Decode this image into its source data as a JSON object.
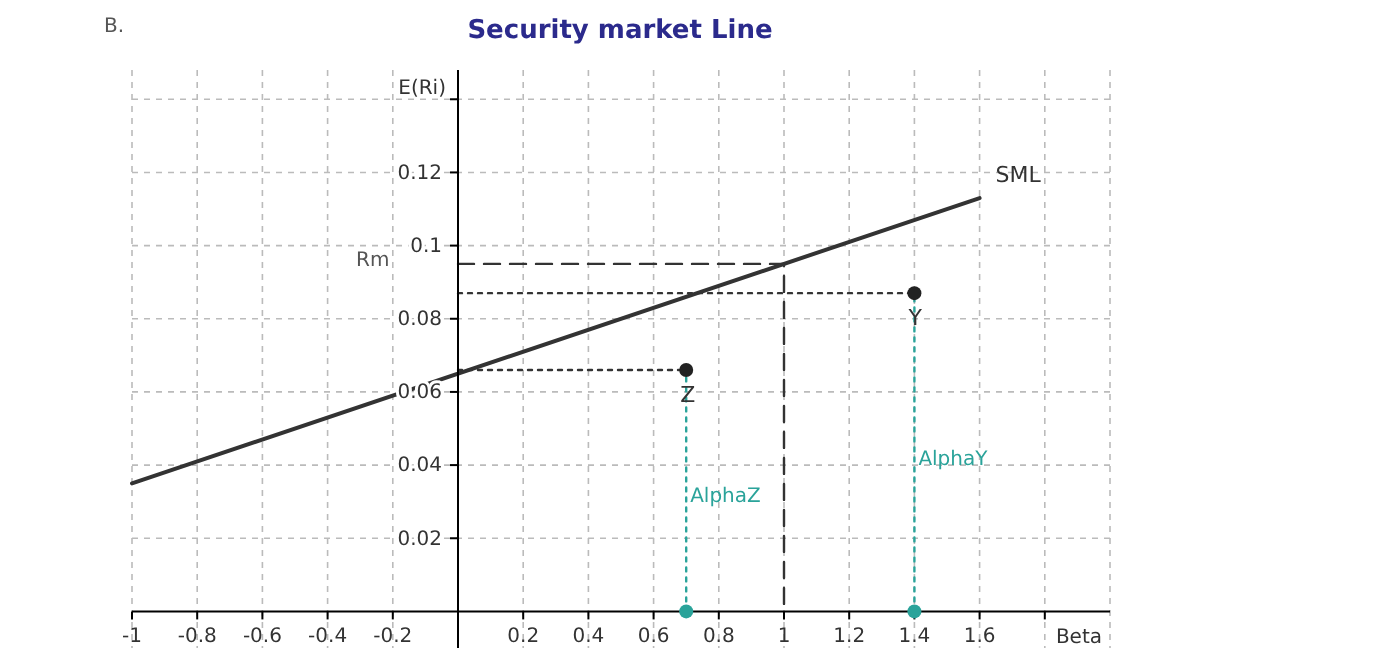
{
  "chart_data": {
    "type": "line",
    "title": "Security market Line",
    "xlabel": "Beta",
    "ylabel": "E(Ri)",
    "xlim": [
      -1,
      2
    ],
    "ylim": [
      -0.01,
      0.148
    ],
    "xticks": [
      -1,
      -0.8,
      -0.6,
      -0.4,
      -0.2,
      0.2,
      0.4,
      0.6,
      0.8,
      1,
      1.2,
      1.4,
      1.6,
      {
        "value": 1.8,
        "label": null
      }
    ],
    "yticks": [
      0.02,
      0.04,
      0.06,
      0.08,
      0.1,
      0.12,
      {
        "value": 0.14,
        "label": null
      }
    ],
    "grid": true,
    "series": [
      {
        "name": "SML",
        "color": "#333333",
        "x": [
          -1,
          1.6
        ],
        "values": [
          0.035,
          0.113
        ],
        "line_style": "solid"
      },
      {
        "color": "#333333",
        "x": [
          0,
          1,
          1
        ],
        "values": [
          0.095,
          0.095,
          0
        ],
        "line_style": "dashed"
      },
      {
        "color": "#333333",
        "x": [
          0,
          1.4
        ],
        "values": [
          0.087,
          0.087
        ],
        "line_style": "dotted"
      },
      {
        "color": "#333333",
        "x": [
          0,
          0.7
        ],
        "values": [
          0.066,
          0.066
        ],
        "line_style": "dotted"
      },
      {
        "color": "#2aa39a",
        "x": [
          0.7,
          0.7
        ],
        "values": [
          0,
          0.066
        ],
        "line_style": "dotted"
      },
      {
        "color": "#2aa39a",
        "x": [
          1.4,
          1.4
        ],
        "values": [
          0,
          0.087
        ],
        "line_style": "dotted"
      },
      {
        "name": "Y",
        "type": "scatter",
        "color": "#222222",
        "x": [
          1.4
        ],
        "values": [
          0.087
        ],
        "marker": "circle"
      },
      {
        "name": "Z",
        "type": "scatter",
        "color": "#222222",
        "x": [
          0.7
        ],
        "values": [
          0.066
        ],
        "marker": "circle"
      },
      {
        "type": "scatter",
        "color": "#2aa39a",
        "x": [
          0.7,
          1.4
        ],
        "values": [
          0,
          0
        ],
        "marker": "circle"
      }
    ],
    "annotations": [
      "B.",
      "Rm",
      {
        "text": "AlphaZ",
        "x": 0.7,
        "y": 0.03
      },
      {
        "text": "AlphaY",
        "x": 1.4,
        "y": 0.04
      }
    ]
  }
}
